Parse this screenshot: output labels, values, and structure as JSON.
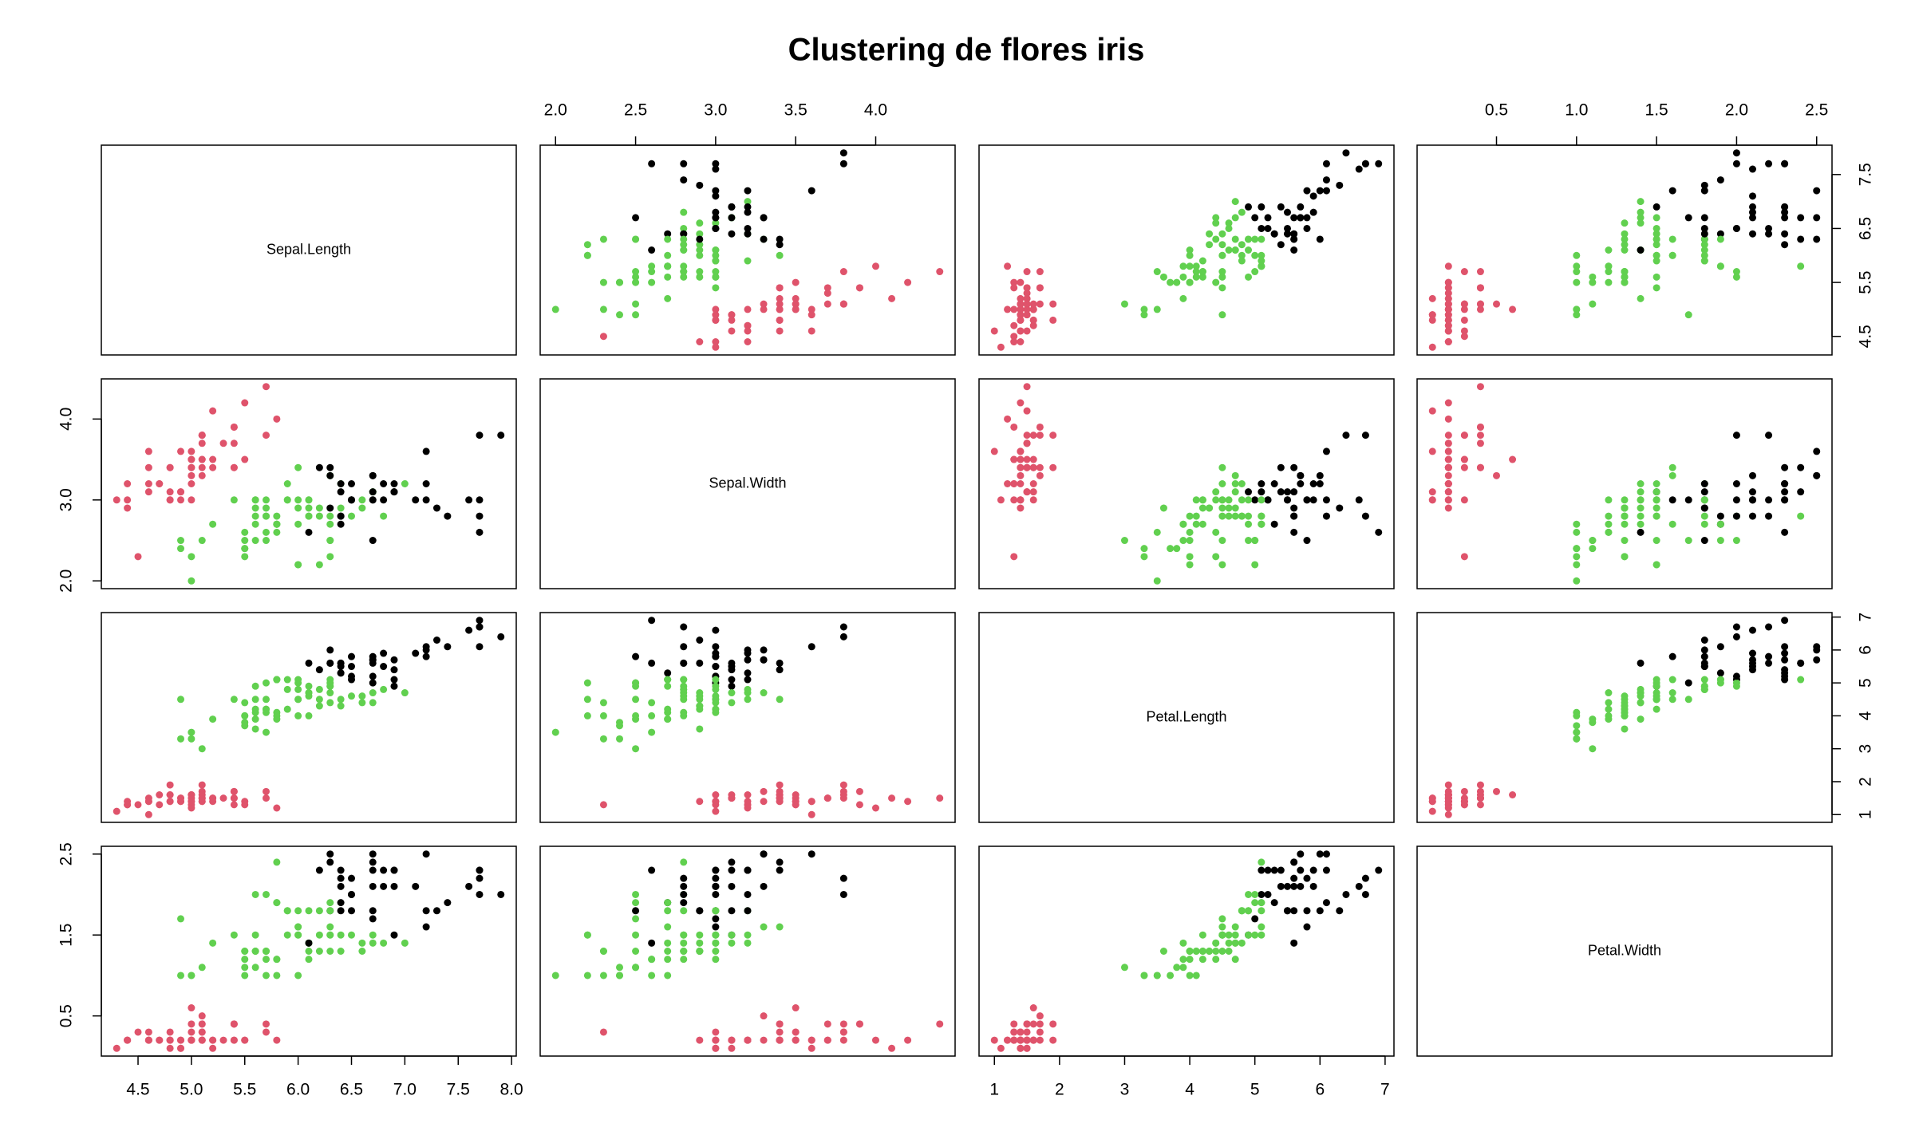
{
  "chart_data": {
    "type": "scatter_matrix",
    "title": "Clustering de flores iris",
    "colors": [
      "#DF536B",
      "#61D04F",
      "#000000"
    ],
    "cluster": [
      0,
      0,
      0,
      0,
      0,
      0,
      0,
      0,
      0,
      0,
      0,
      0,
      0,
      0,
      0,
      0,
      0,
      0,
      0,
      0,
      0,
      0,
      0,
      0,
      0,
      0,
      0,
      0,
      0,
      0,
      0,
      0,
      0,
      0,
      0,
      0,
      0,
      0,
      0,
      0,
      0,
      0,
      0,
      0,
      0,
      0,
      0,
      0,
      0,
      0,
      1,
      1,
      2,
      1,
      1,
      1,
      1,
      1,
      1,
      1,
      1,
      1,
      1,
      1,
      1,
      1,
      1,
      1,
      1,
      1,
      1,
      1,
      1,
      1,
      1,
      1,
      1,
      2,
      1,
      1,
      1,
      1,
      1,
      1,
      1,
      1,
      1,
      1,
      1,
      1,
      1,
      1,
      1,
      1,
      1,
      1,
      1,
      1,
      1,
      1,
      2,
      1,
      2,
      2,
      2,
      2,
      1,
      2,
      2,
      2,
      2,
      2,
      2,
      1,
      1,
      2,
      2,
      2,
      2,
      1,
      2,
      1,
      2,
      1,
      2,
      2,
      1,
      1,
      2,
      2,
      2,
      2,
      2,
      1,
      2,
      2,
      2,
      2,
      1,
      2,
      2,
      2,
      1,
      2,
      2,
      2,
      1,
      2,
      2,
      1
    ],
    "variables": [
      {
        "name": "Sepal.Length",
        "lim": [
          4.156,
          8.044
        ],
        "xticks": [
          4.5,
          {
            "value": 5,
            "label": "5.0"
          },
          5.5,
          {
            "value": 6,
            "label": "6.0"
          },
          6.5,
          {
            "value": 7,
            "label": "7.0"
          },
          7.5,
          {
            "value": 8,
            "label": "8.0"
          }
        ],
        "yticks": [
          4.5,
          5.5,
          6.5,
          7.5
        ],
        "values": [
          5.1,
          4.9,
          4.7,
          4.6,
          5.0,
          5.4,
          4.6,
          5.0,
          4.4,
          4.9,
          5.4,
          4.8,
          4.8,
          4.3,
          5.8,
          5.7,
          5.4,
          5.1,
          5.7,
          5.1,
          5.4,
          5.1,
          4.6,
          5.1,
          4.8,
          5.0,
          5.0,
          5.2,
          5.2,
          4.7,
          4.8,
          5.4,
          5.2,
          5.5,
          4.9,
          5.0,
          5.5,
          4.9,
          4.4,
          5.1,
          5.0,
          4.5,
          4.4,
          5.0,
          5.1,
          4.8,
          5.1,
          4.6,
          5.3,
          5.0,
          7.0,
          6.4,
          6.9,
          5.5,
          6.5,
          5.7,
          6.3,
          4.9,
          6.6,
          5.2,
          5.0,
          5.9,
          6.0,
          6.1,
          5.6,
          6.7,
          5.6,
          5.8,
          6.2,
          5.6,
          5.9,
          6.1,
          6.3,
          6.1,
          6.4,
          6.6,
          6.8,
          6.7,
          6.0,
          5.7,
          5.5,
          5.5,
          5.8,
          6.0,
          5.4,
          6.0,
          6.7,
          6.3,
          5.6,
          5.5,
          5.5,
          6.1,
          5.8,
          5.0,
          5.6,
          5.7,
          5.7,
          6.2,
          5.1,
          5.7,
          6.3,
          5.8,
          7.1,
          6.3,
          6.5,
          7.6,
          4.9,
          7.3,
          6.7,
          7.2,
          6.5,
          6.4,
          6.8,
          5.7,
          5.8,
          6.4,
          6.5,
          7.7,
          7.7,
          6.0,
          6.9,
          5.6,
          7.7,
          6.3,
          6.7,
          7.2,
          6.2,
          6.1,
          6.4,
          7.2,
          7.4,
          7.9,
          6.4,
          6.3,
          6.1,
          7.7,
          6.3,
          6.4,
          6.0,
          6.9,
          6.7,
          6.9,
          5.8,
          6.8,
          6.7,
          6.7,
          6.3,
          6.5,
          6.2,
          5.9
        ]
      },
      {
        "name": "Sepal.Width",
        "lim": [
          1.904,
          4.496
        ],
        "xticks": [
          {
            "value": 2,
            "label": "2.0"
          },
          2.5,
          {
            "value": 3,
            "label": "3.0"
          },
          3.5,
          {
            "value": 4,
            "label": "4.0"
          }
        ],
        "yticks": [
          {
            "value": 2,
            "label": "2.0"
          },
          {
            "value": 3,
            "label": "3.0"
          },
          {
            "value": 4,
            "label": "4.0"
          }
        ],
        "values": [
          3.5,
          3.0,
          3.2,
          3.1,
          3.6,
          3.9,
          3.4,
          3.4,
          2.9,
          3.1,
          3.7,
          3.4,
          3.0,
          3.0,
          4.0,
          4.4,
          3.9,
          3.5,
          3.8,
          3.8,
          3.4,
          3.7,
          3.6,
          3.3,
          3.4,
          3.0,
          3.4,
          3.5,
          3.4,
          3.2,
          3.1,
          3.4,
          4.1,
          4.2,
          3.1,
          3.2,
          3.5,
          3.6,
          3.0,
          3.4,
          3.5,
          2.3,
          3.2,
          3.5,
          3.8,
          3.0,
          3.8,
          3.2,
          3.7,
          3.3,
          3.2,
          3.2,
          3.1,
          2.3,
          2.8,
          2.8,
          3.3,
          2.4,
          2.9,
          2.7,
          2.0,
          3.0,
          2.2,
          2.9,
          2.9,
          3.1,
          3.0,
          2.7,
          2.2,
          2.5,
          3.2,
          2.8,
          2.5,
          2.8,
          2.9,
          3.0,
          2.8,
          3.0,
          2.9,
          2.6,
          2.4,
          2.4,
          2.7,
          2.7,
          3.0,
          3.4,
          3.1,
          2.3,
          3.0,
          2.5,
          2.6,
          3.0,
          2.6,
          2.3,
          2.7,
          3.0,
          2.9,
          2.9,
          2.5,
          2.8,
          3.3,
          2.7,
          3.0,
          2.9,
          3.0,
          3.0,
          2.5,
          2.9,
          2.5,
          3.6,
          3.2,
          2.7,
          3.0,
          2.5,
          2.8,
          3.2,
          3.0,
          3.8,
          2.6,
          2.2,
          3.2,
          2.8,
          2.8,
          2.7,
          3.3,
          3.2,
          2.8,
          3.0,
          2.8,
          3.0,
          2.8,
          3.8,
          2.8,
          2.8,
          2.6,
          3.0,
          3.4,
          3.1,
          3.0,
          3.1,
          3.1,
          3.1,
          2.7,
          3.2,
          3.3,
          3.0,
          2.5,
          3.0,
          3.4,
          3.0
        ]
      },
      {
        "name": "Petal.Length",
        "lim": [
          0.764,
          7.136
        ],
        "xticks": [
          1,
          2,
          3,
          4,
          5,
          6,
          7
        ],
        "yticks": [
          1,
          2,
          3,
          4,
          5,
          6,
          7
        ],
        "values": [
          1.4,
          1.4,
          1.3,
          1.5,
          1.4,
          1.7,
          1.4,
          1.5,
          1.4,
          1.5,
          1.5,
          1.6,
          1.4,
          1.1,
          1.2,
          1.5,
          1.3,
          1.4,
          1.7,
          1.5,
          1.7,
          1.5,
          1.0,
          1.7,
          1.9,
          1.6,
          1.6,
          1.5,
          1.4,
          1.6,
          1.6,
          1.5,
          1.5,
          1.4,
          1.5,
          1.2,
          1.3,
          1.4,
          1.3,
          1.5,
          1.3,
          1.3,
          1.3,
          1.6,
          1.9,
          1.4,
          1.6,
          1.4,
          1.5,
          1.4,
          4.7,
          4.5,
          4.9,
          4.0,
          4.6,
          4.5,
          4.7,
          3.3,
          4.6,
          3.9,
          3.5,
          4.2,
          4.0,
          4.7,
          3.6,
          4.4,
          4.5,
          4.1,
          4.5,
          3.9,
          4.8,
          4.0,
          4.9,
          4.7,
          4.3,
          4.4,
          4.8,
          5.0,
          4.5,
          3.5,
          3.8,
          3.7,
          3.9,
          5.1,
          4.5,
          4.5,
          4.7,
          4.4,
          4.1,
          4.0,
          4.4,
          4.6,
          4.0,
          3.3,
          4.2,
          4.2,
          4.2,
          4.3,
          3.0,
          4.1,
          6.0,
          5.1,
          5.9,
          5.6,
          5.8,
          6.6,
          4.5,
          6.3,
          5.8,
          6.1,
          5.1,
          5.3,
          5.5,
          5.0,
          5.1,
          5.3,
          5.5,
          6.7,
          6.9,
          5.0,
          5.7,
          4.9,
          6.7,
          4.9,
          5.7,
          6.0,
          4.8,
          4.9,
          5.6,
          5.8,
          6.1,
          6.4,
          5.6,
          5.1,
          5.6,
          6.1,
          5.6,
          5.5,
          4.8,
          5.4,
          5.6,
          5.1,
          5.1,
          5.9,
          5.7,
          5.2,
          5.0,
          5.2,
          5.4,
          5.1
        ]
      },
      {
        "name": "Petal.Width",
        "lim": [
          0.004,
          2.596
        ],
        "xticks": [
          0.5,
          {
            "value": 1,
            "label": "1.0"
          },
          1.5,
          {
            "value": 2,
            "label": "2.0"
          },
          2.5
        ],
        "yticks": [
          0.5,
          1.5,
          2.5
        ],
        "values": [
          0.2,
          0.2,
          0.2,
          0.2,
          0.2,
          0.4,
          0.3,
          0.2,
          0.2,
          0.1,
          0.2,
          0.2,
          0.1,
          0.1,
          0.2,
          0.4,
          0.4,
          0.3,
          0.3,
          0.3,
          0.2,
          0.4,
          0.2,
          0.5,
          0.2,
          0.2,
          0.4,
          0.2,
          0.2,
          0.2,
          0.2,
          0.4,
          0.1,
          0.2,
          0.2,
          0.2,
          0.2,
          0.1,
          0.2,
          0.2,
          0.3,
          0.3,
          0.2,
          0.6,
          0.4,
          0.3,
          0.2,
          0.2,
          0.2,
          0.2,
          1.4,
          1.5,
          1.5,
          1.3,
          1.5,
          1.3,
          1.6,
          1.0,
          1.3,
          1.4,
          1.0,
          1.5,
          1.0,
          1.4,
          1.3,
          1.4,
          1.5,
          1.0,
          1.5,
          1.1,
          1.8,
          1.3,
          1.5,
          1.2,
          1.3,
          1.4,
          1.4,
          1.7,
          1.5,
          1.0,
          1.1,
          1.0,
          1.2,
          1.6,
          1.5,
          1.6,
          1.5,
          1.3,
          1.3,
          1.3,
          1.2,
          1.4,
          1.2,
          1.0,
          1.3,
          1.2,
          1.3,
          1.3,
          1.1,
          1.3,
          2.5,
          1.9,
          2.1,
          1.8,
          2.2,
          2.1,
          1.7,
          1.8,
          1.8,
          2.5,
          2.0,
          1.9,
          2.1,
          2.0,
          2.4,
          2.3,
          1.8,
          2.2,
          2.3,
          1.5,
          2.3,
          2.0,
          2.0,
          1.8,
          2.1,
          1.8,
          1.8,
          1.8,
          2.1,
          1.6,
          1.9,
          2.0,
          2.2,
          1.5,
          1.4,
          2.3,
          2.4,
          1.8,
          1.8,
          2.1,
          2.4,
          2.3,
          1.9,
          2.3,
          2.5,
          2.3,
          1.9,
          2.0,
          2.3,
          1.8
        ]
      }
    ]
  }
}
